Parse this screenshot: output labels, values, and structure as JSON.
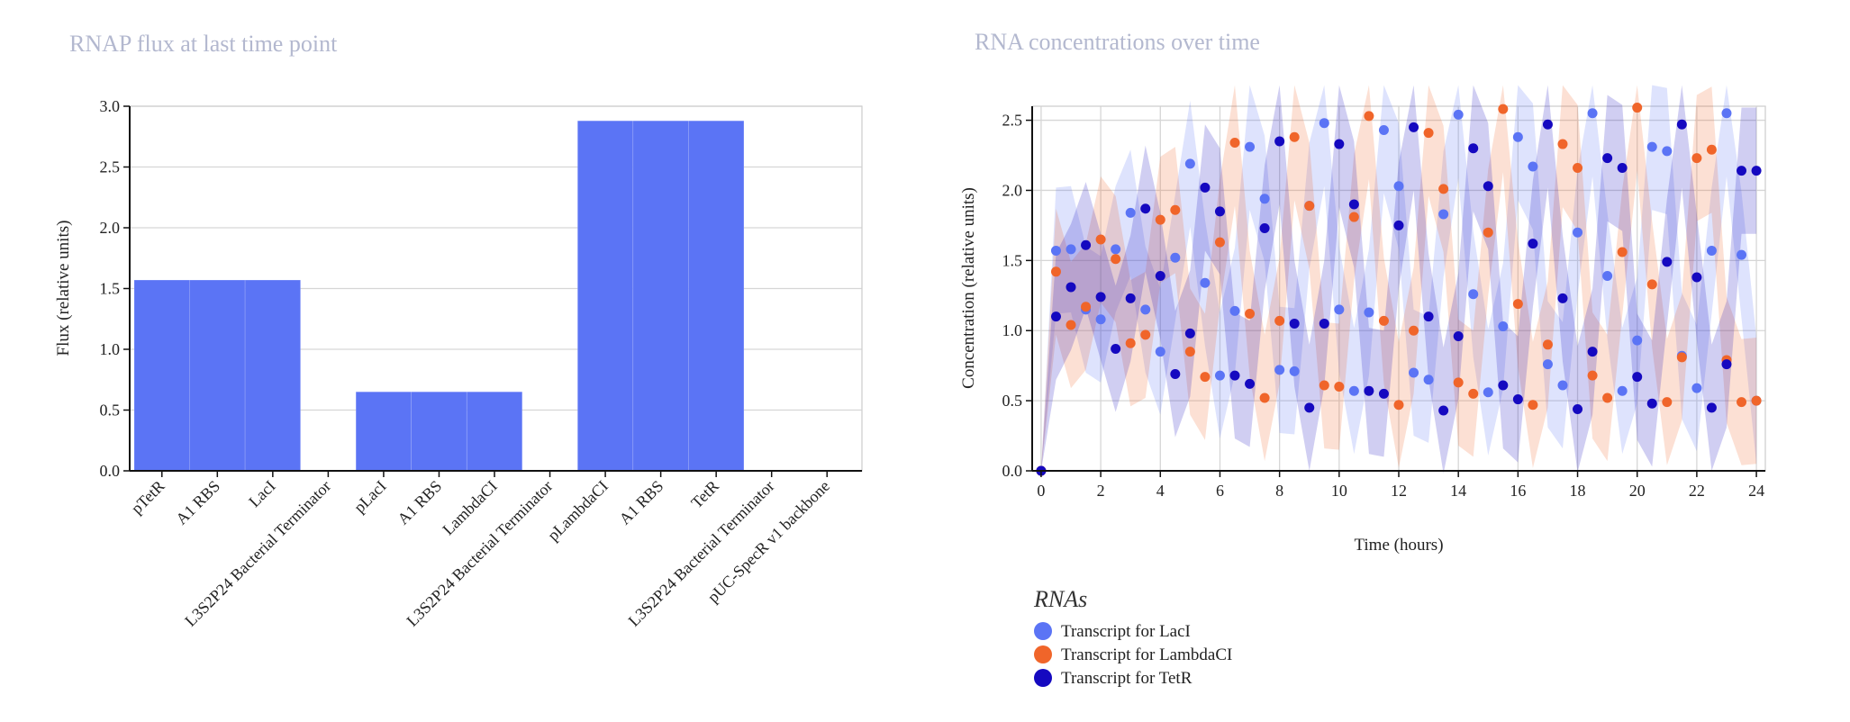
{
  "chart_data": [
    {
      "type": "bar",
      "title": "RNAP flux at last time point",
      "ylabel": "Flux (relative units)",
      "xlabel": "",
      "ylim": [
        0,
        3.0
      ],
      "yticks": [
        "0.0",
        "0.5",
        "1.0",
        "1.5",
        "2.0",
        "2.5",
        "3.0"
      ],
      "categories": [
        "pTetR",
        "A1 RBS",
        "LacI",
        "L3S2P24 Bacterial Terminator",
        "pLacI",
        "A1 RBS",
        "LambdaCI",
        "L3S2P24 Bacterial Terminator",
        "pLambdaCI",
        "A1 RBS",
        "TetR",
        "L3S2P24 Bacterial Terminator",
        "pUC-SpecR v1 backbone"
      ],
      "values": [
        1.57,
        1.57,
        1.57,
        0,
        0.65,
        0.65,
        0.65,
        0,
        2.88,
        2.88,
        2.88,
        0,
        0
      ],
      "bar_color": "#5b74f5",
      "grid": true
    },
    {
      "type": "scatter",
      "title": "RNA concentrations over time",
      "xlabel": "Time (hours)",
      "ylabel": "Concentration (relative units)",
      "xlim": [
        -0.3,
        24.3
      ],
      "ylim": [
        0,
        2.6
      ],
      "xticks": [
        "0",
        "2",
        "4",
        "6",
        "8",
        "10",
        "12",
        "14",
        "16",
        "18",
        "20",
        "22",
        "24"
      ],
      "yticks": [
        "0.0",
        "0.5",
        "1.0",
        "1.5",
        "2.0",
        "2.5"
      ],
      "grid": true,
      "band_halfwidth": 0.45,
      "legend_title": "RNAs",
      "legend_position": "bottom-left",
      "x": [
        0,
        0.5,
        1,
        1.5,
        2,
        2.5,
        3,
        3.5,
        4,
        4.5,
        5,
        5.5,
        6,
        6.5,
        7,
        7.5,
        8,
        8.5,
        9,
        9.5,
        10,
        10.5,
        11,
        11.5,
        12,
        12.5,
        13,
        13.5,
        14,
        14.5,
        15,
        15.5,
        16,
        16.5,
        17,
        17.5,
        18,
        18.5,
        19,
        19.5,
        20,
        20.5,
        21,
        21.5,
        22,
        22.5,
        23,
        23.5,
        24
      ],
      "series": [
        {
          "name": "Transcript for LacI",
          "color": "#5b74f5",
          "values": [
            0,
            1.57,
            1.58,
            1.15,
            1.08,
            1.58,
            1.84,
            1.15,
            0.85,
            1.52,
            2.19,
            1.34,
            0.68,
            1.14,
            2.31,
            1.94,
            0.72,
            0.71,
            1.89,
            2.48,
            1.15,
            0.57,
            1.13,
            2.43,
            2.03,
            0.7,
            0.65,
            1.83,
            2.54,
            1.26,
            0.56,
            1.03,
            2.38,
            2.17,
            0.76,
            0.61,
            1.7,
            2.55,
            1.39,
            0.57,
            0.93,
            2.31,
            2.28,
            0.82,
            0.59,
            1.57,
            2.55,
            1.54,
            0.5
          ]
        },
        {
          "name": "Transcript for LambdaCI",
          "color": "#f0652a",
          "values": [
            0,
            1.42,
            1.04,
            1.17,
            1.65,
            1.51,
            0.91,
            0.97,
            1.79,
            1.86,
            0.85,
            0.67,
            1.63,
            2.34,
            1.12,
            0.52,
            1.07,
            2.38,
            1.89,
            0.61,
            0.6,
            1.81,
            2.53,
            1.07,
            0.47,
            1.0,
            2.41,
            2.01,
            0.63,
            0.55,
            1.7,
            2.58,
            1.19,
            0.47,
            0.9,
            2.33,
            2.16,
            0.68,
            0.52,
            1.56,
            2.59,
            1.33,
            0.49,
            0.81,
            2.23,
            2.29,
            0.79,
            0.49,
            0.5
          ]
        },
        {
          "name": "Transcript for TetR",
          "color": "#1509c0",
          "values": [
            0,
            1.1,
            1.31,
            1.61,
            1.24,
            0.87,
            1.23,
            1.87,
            1.39,
            0.69,
            0.98,
            2.02,
            1.85,
            0.68,
            0.62,
            1.73,
            2.35,
            1.05,
            0.45,
            1.05,
            2.33,
            1.9,
            0.57,
            0.55,
            1.75,
            2.45,
            1.1,
            0.43,
            0.96,
            2.3,
            2.03,
            0.61,
            0.51,
            1.62,
            2.47,
            1.23,
            0.44,
            0.85,
            2.23,
            2.16,
            0.67,
            0.48,
            1.49,
            2.47,
            1.38,
            0.45,
            0.76,
            2.14,
            2.14
          ]
        }
      ]
    }
  ]
}
